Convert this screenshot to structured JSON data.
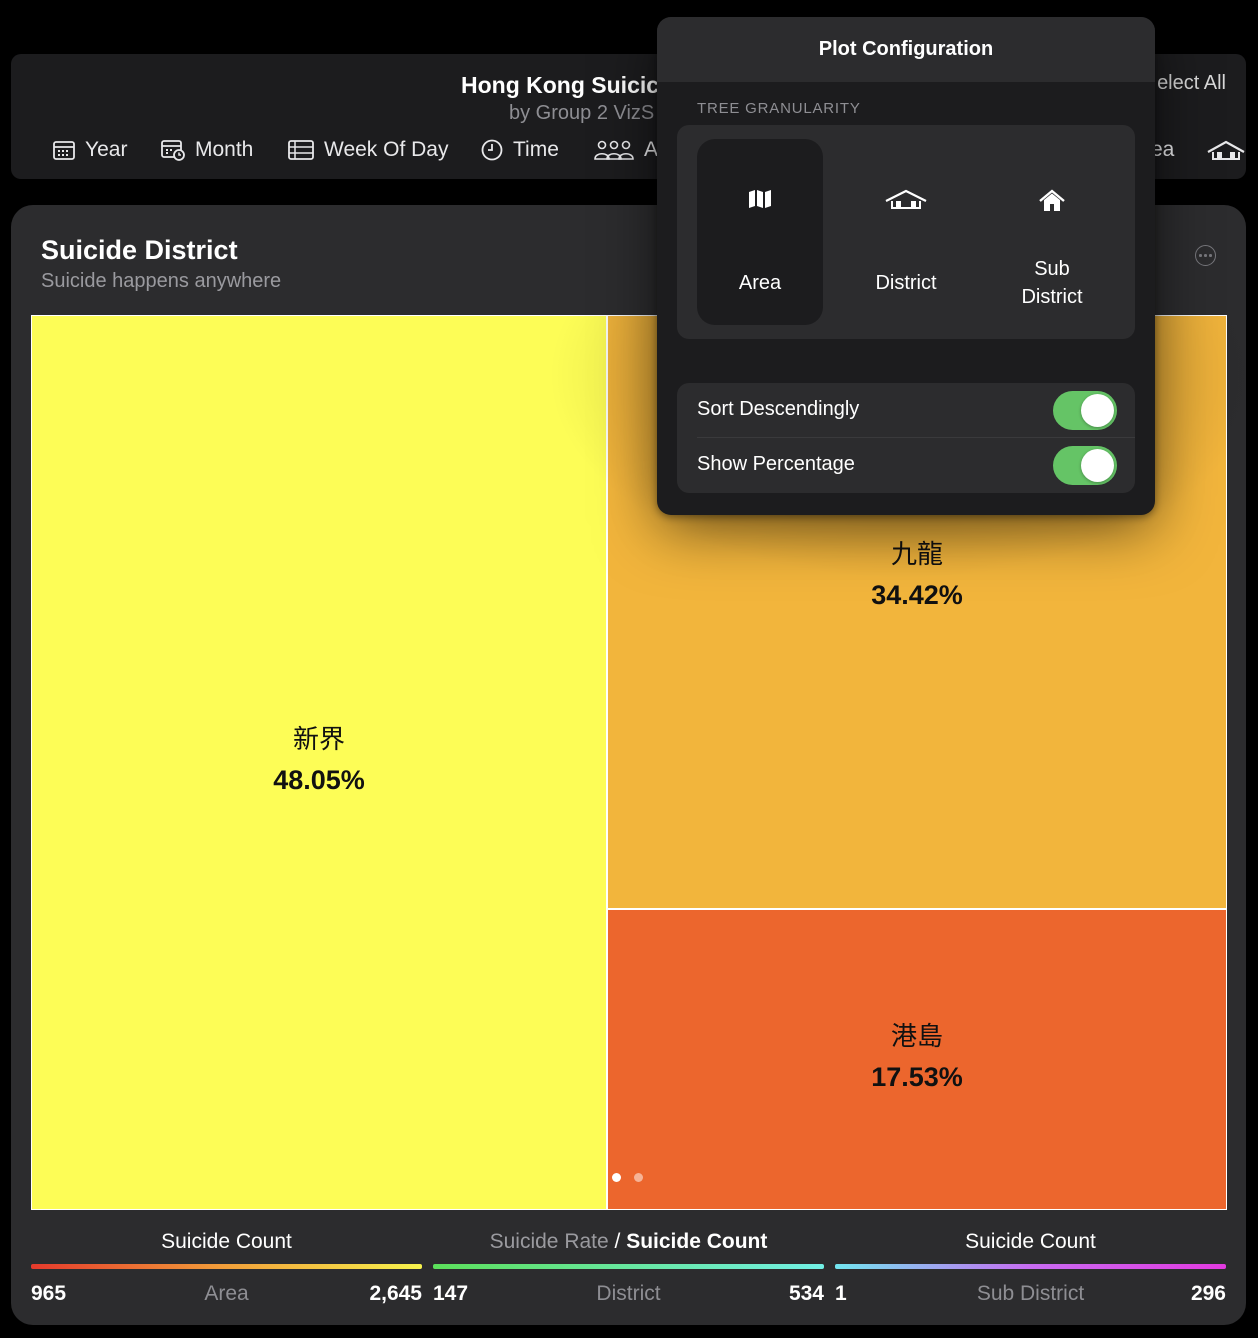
{
  "header": {
    "title": "Hong Kong Suicic",
    "subtitle": "by Group 2 VizS",
    "select_all": "elect All",
    "tools": [
      {
        "label": "Year",
        "icon": "calendar-icon"
      },
      {
        "label": "Month",
        "icon": "calendar-clock-icon"
      },
      {
        "label": "Week Of Day",
        "icon": "list-icon"
      },
      {
        "label": "Time",
        "icon": "clock-icon"
      },
      {
        "label": "A",
        "icon": "people-icon"
      }
    ],
    "tool_tail": "ea",
    "tail_icon": "district-icon"
  },
  "card": {
    "title": "Suicide District",
    "subtitle": "Suicide happens anywhere",
    "more_icon": "ellipsis-circle-icon"
  },
  "chart_data": {
    "type": "treemap",
    "tiles": [
      {
        "label": "新界",
        "percent": "48.05%",
        "value": 48.05,
        "color": "#fdfd56"
      },
      {
        "label": "九龍",
        "percent": "34.42%",
        "value": 34.42,
        "color": "#f2b53c"
      },
      {
        "label": "港島",
        "percent": "17.53%",
        "value": 17.53,
        "color": "#ec662d"
      }
    ]
  },
  "legends": [
    {
      "title_bold": "Suicide Count",
      "min": "965",
      "mid": "Area",
      "max": "2,645",
      "gradient": [
        "#e53a2c",
        "#f2a03a",
        "#f7f34d"
      ]
    },
    {
      "title_dim": "Suicide Rate",
      "title_sep": " / ",
      "title_bold": "Suicide Count",
      "min": "147",
      "mid": "District",
      "max": "534",
      "gradient": [
        "#5ce05a",
        "#72f0e6"
      ]
    },
    {
      "title_bold": "Suicide Count",
      "min": "1",
      "mid": "Sub District",
      "max": "296",
      "gradient": [
        "#72e6f0",
        "#c86cf2",
        "#e33ae0"
      ]
    }
  ],
  "popover": {
    "title": "Plot Configuration",
    "section": "TREE GRANULARITY",
    "options": [
      {
        "line1": "Area",
        "line2": "",
        "icon": "map-icon",
        "selected": true
      },
      {
        "line1": "District",
        "line2": "",
        "icon": "district-icon",
        "selected": false
      },
      {
        "line1": "Sub",
        "line2": "District",
        "icon": "house-icon",
        "selected": false
      }
    ],
    "toggles": [
      {
        "label": "Sort Descendingly",
        "on": true
      },
      {
        "label": "Show Percentage",
        "on": true
      }
    ],
    "switch_color": "#65c466"
  }
}
